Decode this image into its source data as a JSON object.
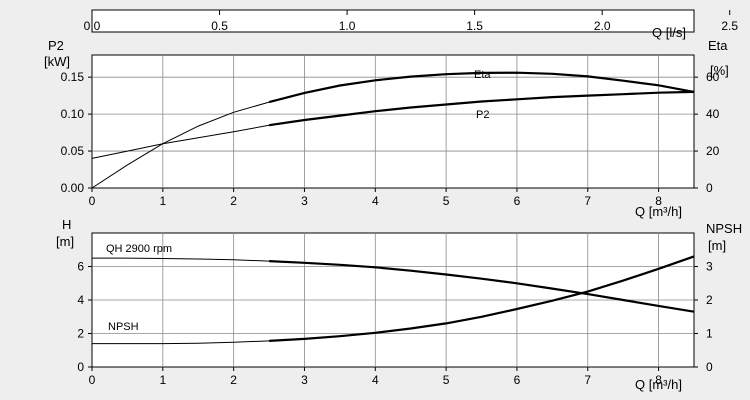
{
  "chart_data": [
    {
      "panel": "top",
      "type": "line",
      "q_ls_axis": {
        "label": "Q [l/s]",
        "ticks": [
          0.0,
          0.5,
          1.0,
          1.5,
          2.0,
          2.5
        ],
        "tick_labels": [
          "0.0",
          "0.5",
          "1.0",
          "1.5",
          "2.0",
          "2.5"
        ],
        "xlim": [
          0,
          2.36
        ]
      },
      "x_axis": {
        "label": "Q [m³/h]",
        "ticks": [
          0,
          1,
          2,
          3,
          4,
          5,
          6,
          7,
          8
        ],
        "tick_labels": [
          "0",
          "1",
          "2",
          "3",
          "4",
          "5",
          "6",
          "7",
          "8"
        ],
        "xlim": [
          0,
          8.5
        ]
      },
      "y_left": {
        "label_line1": "P2",
        "label_line2": "[kW]",
        "ticks": [
          0.0,
          0.05,
          0.1,
          0.15
        ],
        "tick_labels": [
          "0.00",
          "0.05",
          "0.10",
          "0.15"
        ],
        "ylim": [
          0,
          0.18
        ]
      },
      "y_right": {
        "label_line1": "Eta",
        "label_line2": "[%]",
        "ticks": [
          0,
          20,
          40,
          60
        ],
        "tick_labels": [
          "0",
          "20",
          "40",
          "60"
        ],
        "ylim": [
          0,
          72
        ]
      },
      "grid": true,
      "series": [
        {
          "name": "Eta",
          "axis": "right",
          "operating_from": 2.5,
          "x": [
            0,
            0.5,
            1.0,
            1.5,
            2.0,
            2.5,
            3.0,
            3.5,
            4.0,
            4.5,
            5.0,
            5.5,
            6.0,
            6.5,
            7.0,
            7.5,
            8.0,
            8.5
          ],
          "y": [
            0,
            12.5,
            24,
            33.5,
            41,
            46.5,
            51.5,
            55.5,
            58.3,
            60.3,
            61.6,
            62.3,
            62.4,
            61.8,
            60.4,
            58.1,
            55.6,
            52.0
          ]
        },
        {
          "name": "P2",
          "axis": "left",
          "operating_from": 2.5,
          "x": [
            0,
            0.5,
            1.0,
            1.5,
            2.0,
            2.5,
            3.0,
            3.5,
            4.0,
            4.5,
            5.0,
            5.5,
            6.0,
            6.5,
            7.0,
            7.5,
            8.0,
            8.5
          ],
          "y": [
            0.04,
            0.05,
            0.06,
            0.068,
            0.076,
            0.085,
            0.092,
            0.098,
            0.104,
            0.109,
            0.113,
            0.117,
            0.12,
            0.123,
            0.125,
            0.127,
            0.129,
            0.13
          ]
        }
      ],
      "annotations": [
        "Eta",
        "P2"
      ]
    },
    {
      "panel": "bottom",
      "type": "line",
      "x_axis": {
        "label": "Q [m³/h]",
        "ticks": [
          0,
          1,
          2,
          3,
          4,
          5,
          6,
          7,
          8
        ],
        "tick_labels": [
          "0",
          "1",
          "2",
          "3",
          "4",
          "5",
          "6",
          "7",
          "8"
        ],
        "xlim": [
          0,
          8.5
        ]
      },
      "y_left": {
        "label_line1": "H",
        "label_line2": "[m]",
        "ticks": [
          0,
          2,
          4,
          6
        ],
        "tick_labels": [
          "0",
          "2",
          "4",
          "6"
        ],
        "ylim": [
          0,
          8
        ]
      },
      "y_right": {
        "label_line1": "NPSH",
        "label_line2": "[m]",
        "ticks": [
          0,
          1,
          2,
          3
        ],
        "tick_labels": [
          "0",
          "1",
          "2",
          "3"
        ],
        "ylim": [
          0,
          4
        ]
      },
      "grid": true,
      "series": [
        {
          "name": "QH 2900 rpm",
          "axis": "left",
          "operating_from": 2.5,
          "x": [
            0,
            0.5,
            1.0,
            1.5,
            2.0,
            2.5,
            3.0,
            3.5,
            4.0,
            4.5,
            5.0,
            5.5,
            6.0,
            6.5,
            7.0,
            7.5,
            8.0,
            8.5
          ],
          "y": [
            6.5,
            6.5,
            6.48,
            6.45,
            6.4,
            6.32,
            6.22,
            6.1,
            5.95,
            5.75,
            5.52,
            5.27,
            5.0,
            4.68,
            4.35,
            4.0,
            3.65,
            3.3
          ]
        },
        {
          "name": "NPSH",
          "axis": "right",
          "operating_from": 2.5,
          "x": [
            0,
            0.5,
            1.0,
            1.5,
            2.0,
            2.5,
            3.0,
            3.5,
            4.0,
            4.5,
            5.0,
            5.5,
            6.0,
            6.5,
            7.0,
            7.5,
            8.0,
            8.5
          ],
          "y": [
            0.7,
            0.7,
            0.7,
            0.71,
            0.74,
            0.78,
            0.84,
            0.92,
            1.02,
            1.15,
            1.3,
            1.5,
            1.73,
            1.98,
            2.25,
            2.58,
            2.93,
            3.3
          ]
        }
      ],
      "annotations": [
        "QH 2900 rpm",
        "NPSH"
      ]
    }
  ]
}
